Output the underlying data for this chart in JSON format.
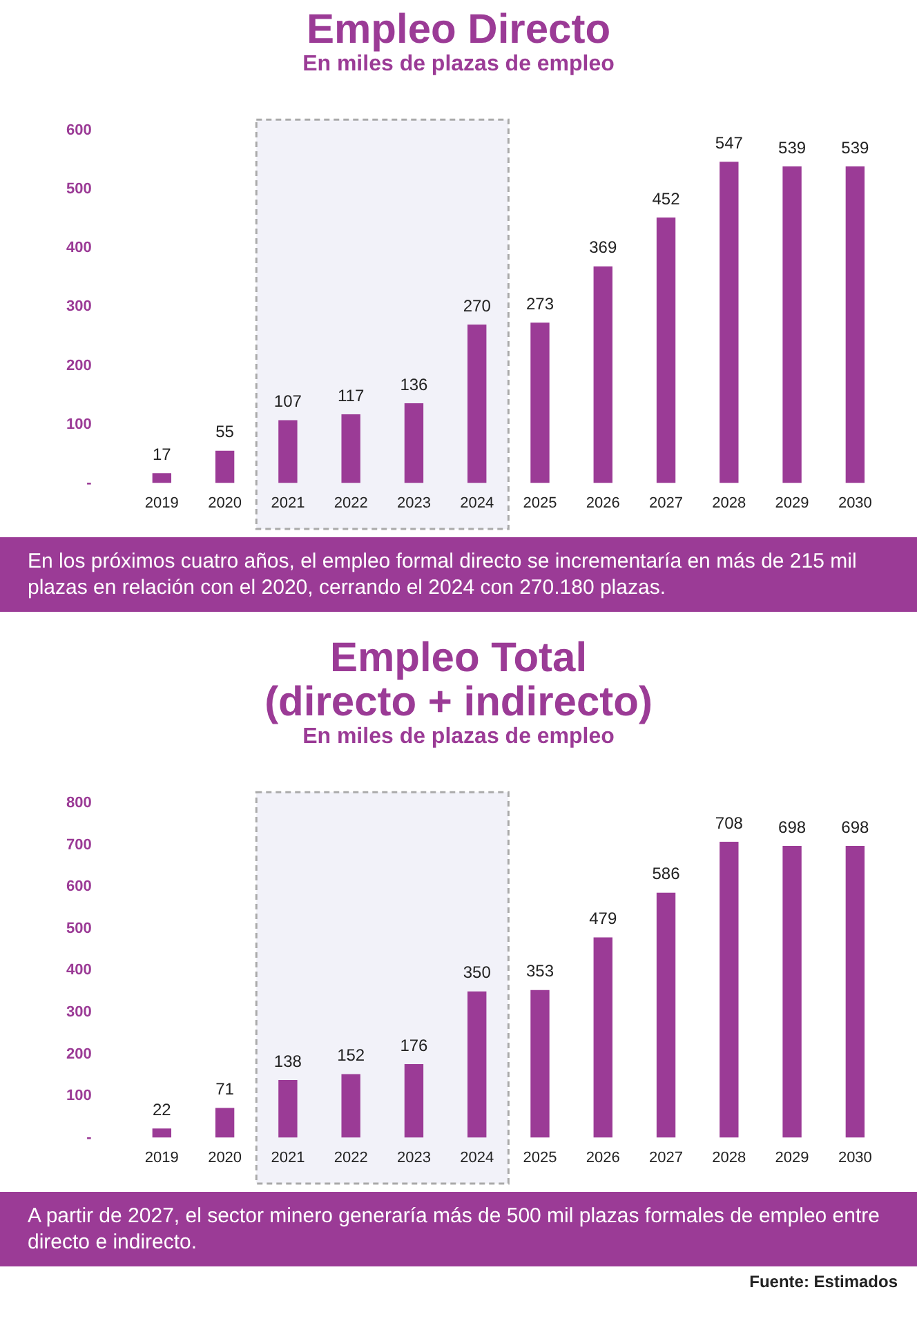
{
  "chart_data": [
    {
      "type": "bar",
      "title": "Empleo Directo",
      "subtitle": "En miles de plazas de empleo",
      "categories": [
        "2019",
        "2020",
        "2021",
        "2022",
        "2023",
        "2024",
        "2025",
        "2026",
        "2027",
        "2028",
        "2029",
        "2030"
      ],
      "values": [
        17,
        55,
        107,
        117,
        136,
        270,
        273,
        369,
        452,
        547,
        539,
        539
      ],
      "color": "#9b3b96",
      "ylim": [
        0,
        600
      ],
      "yticks": [
        {
          "value": 0,
          "label": "-"
        },
        100,
        200,
        300,
        400,
        500,
        600
      ],
      "data_labels": true,
      "bands": [
        {
          "axis": "x",
          "from": "2021",
          "to": "2024",
          "color": "#f2f2f9"
        }
      ],
      "annotations": [
        "En los próximos cuatro años, el empleo formal directo se incrementaría en más de 215 mil plazas en relación con el 2020, cerrando el 2024 con 270.180 plazas."
      ]
    },
    {
      "type": "bar",
      "title": "Empleo Total\n(directo + indirecto)",
      "subtitle": "En miles de plazas de empleo",
      "categories": [
        "2019",
        "2020",
        "2021",
        "2022",
        "2023",
        "2024",
        "2025",
        "2026",
        "2027",
        "2028",
        "2029",
        "2030"
      ],
      "values": [
        22,
        71,
        138,
        152,
        176,
        350,
        353,
        479,
        586,
        708,
        698,
        698
      ],
      "color": "#9b3b96",
      "ylim": [
        0,
        800
      ],
      "yticks": [
        {
          "value": 0,
          "label": "-"
        },
        100,
        200,
        300,
        400,
        500,
        600,
        700,
        800
      ],
      "data_labels": true,
      "bands": [
        {
          "axis": "x",
          "from": "2021",
          "to": "2024",
          "color": "#f2f2f9"
        }
      ],
      "annotations": [
        "A partir de 2027, el sector minero generaría más de 500 mil plazas formales de empleo entre directo e indirecto.",
        "Fuente: Estimados"
      ]
    }
  ]
}
